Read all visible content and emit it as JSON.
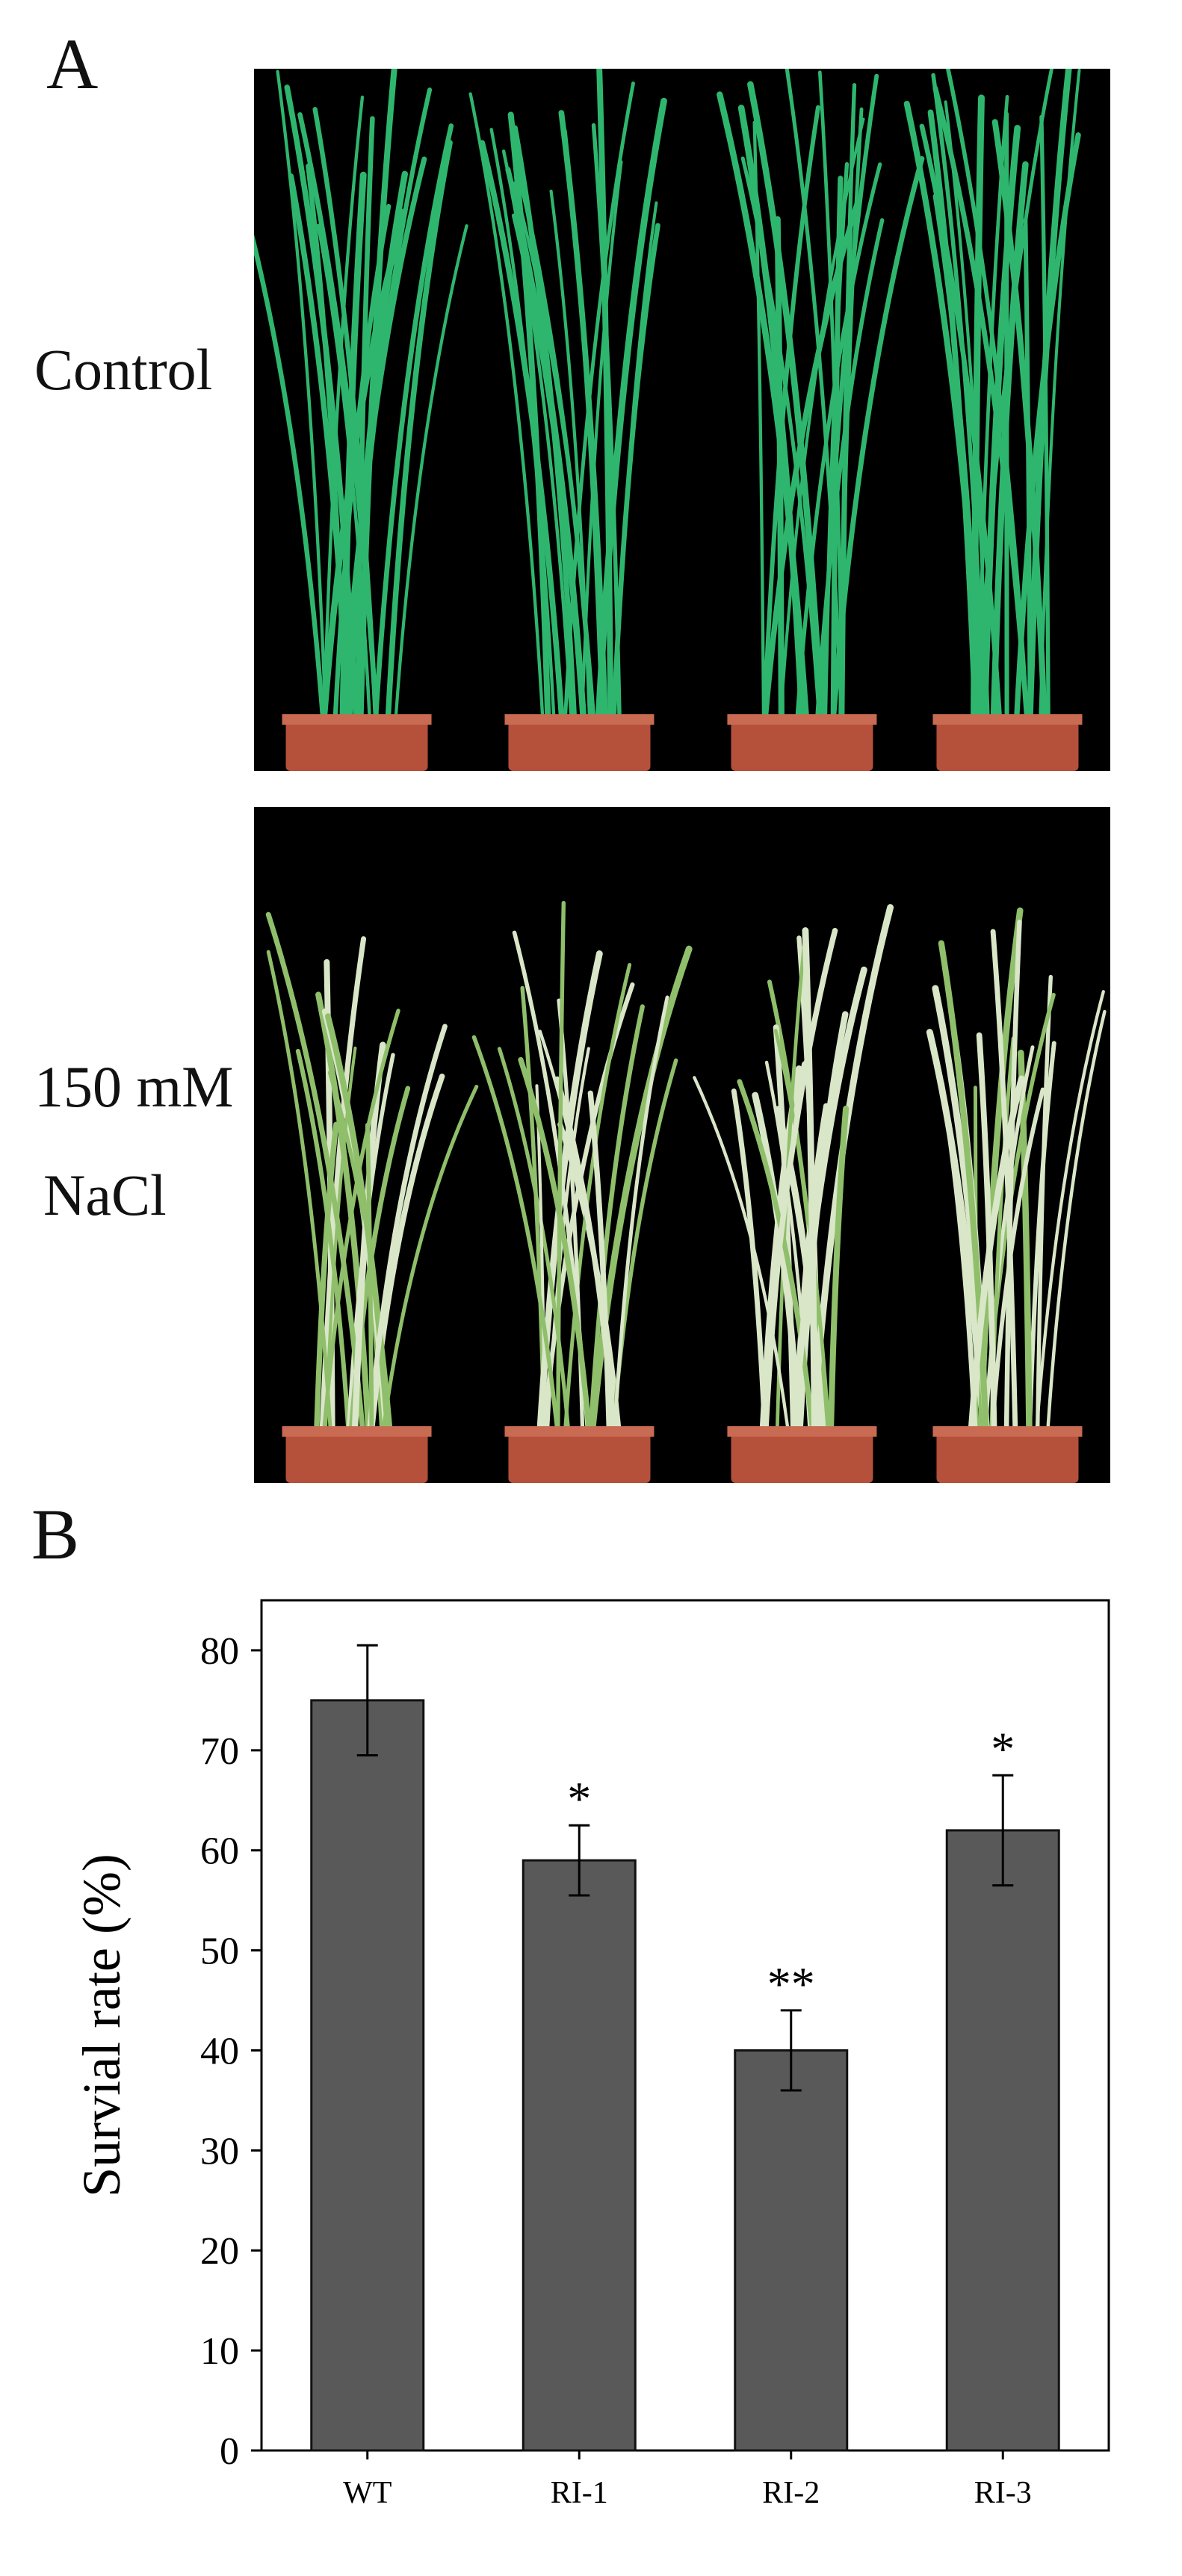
{
  "panels": {
    "a_label": "A",
    "b_label": "B"
  },
  "photos": {
    "top_label": "Control",
    "bottom_label_line1": "150 mM",
    "bottom_label_line2": "NaCl",
    "background_color": "#000000",
    "leaf_color_healthy": "#2fb66e",
    "leaf_color_stressed": "#8fbf6a",
    "pot_color": "#b5503a"
  },
  "chart_data": {
    "type": "bar",
    "categories": [
      "WT",
      "RI-1",
      "RI-2",
      "RI-3"
    ],
    "values": [
      75,
      59,
      40,
      62
    ],
    "errors": [
      5.5,
      3.5,
      4.0,
      5.5
    ],
    "annotations": [
      "",
      "*",
      "**",
      "*"
    ],
    "ylabel": "Survial rate (%)",
    "xlabel": "",
    "ylim": [
      0,
      85
    ],
    "yticks": [
      0,
      10,
      20,
      30,
      40,
      50,
      60,
      70,
      80
    ],
    "bar_color": "#595959",
    "grid": false
  }
}
